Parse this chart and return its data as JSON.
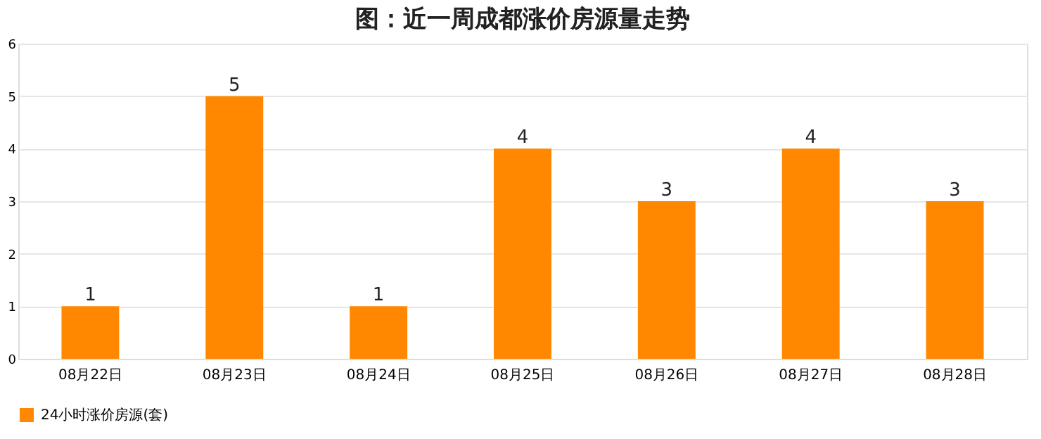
{
  "chart_data": {
    "type": "bar",
    "title": "图：近一周成都涨价房源量走势",
    "categories": [
      "08月22日",
      "08月23日",
      "08月24日",
      "08月25日",
      "08月26日",
      "08月27日",
      "08月28日"
    ],
    "series": [
      {
        "name": "24小时涨价房源(套)",
        "color": "#ff8800",
        "values": [
          1,
          5,
          1,
          4,
          3,
          4,
          3
        ]
      }
    ],
    "ylim": [
      0,
      6
    ],
    "yticks": [
      0,
      1,
      2,
      3,
      4,
      5,
      6
    ],
    "grid": "y",
    "legend": "bottom",
    "data_labels": true
  }
}
